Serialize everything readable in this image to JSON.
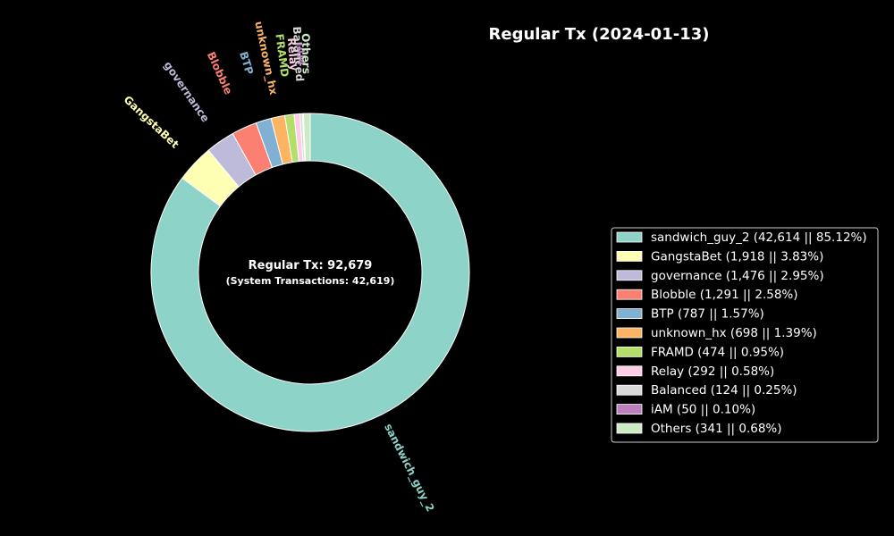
{
  "chart_data": {
    "type": "pie",
    "variant": "donut",
    "title": "Regular Tx (2024-01-13)",
    "center_main": "Regular Tx: 92,679",
    "center_sub": "(System Transactions: 42,619)",
    "legend_position": "right",
    "background": "#000000",
    "slices": [
      {
        "label": "sandwich_guy_2",
        "value": 42614,
        "percent": 85.12,
        "color": "#8dd3c7",
        "legend": "sandwich_guy_2 (42,614 || 85.12%)"
      },
      {
        "label": "GangstaBet",
        "value": 1918,
        "percent": 3.83,
        "color": "#ffffb3",
        "legend": "GangstaBet (1,918 || 3.83%)"
      },
      {
        "label": "governance",
        "value": 1476,
        "percent": 2.95,
        "color": "#bebada",
        "legend": "governance (1,476 || 2.95%)"
      },
      {
        "label": "Blobble",
        "value": 1291,
        "percent": 2.58,
        "color": "#fb8072",
        "legend": "Blobble (1,291 || 2.58%)"
      },
      {
        "label": "BTP",
        "value": 787,
        "percent": 1.57,
        "color": "#80b1d3",
        "legend": "BTP (787 || 1.57%)"
      },
      {
        "label": "unknown_hx",
        "value": 698,
        "percent": 1.39,
        "color": "#fdb462",
        "legend": "unknown_hx (698 || 1.39%)"
      },
      {
        "label": "FRAMD",
        "value": 474,
        "percent": 0.95,
        "color": "#b3de69",
        "legend": "FRAMD (474 || 0.95%)"
      },
      {
        "label": "Relay",
        "value": 292,
        "percent": 0.58,
        "color": "#fccde5",
        "legend": "Relay (292 || 0.58%)"
      },
      {
        "label": "Balanced",
        "value": 124,
        "percent": 0.25,
        "color": "#d9d9d9",
        "legend": "Balanced (124 || 0.25%)"
      },
      {
        "label": "iAM",
        "value": 50,
        "percent": 0.1,
        "color": "#bc80bd",
        "legend": "iAM  (50 || 0.10%)"
      },
      {
        "label": "Others",
        "value": 341,
        "percent": 0.68,
        "color": "#ccebc5",
        "legend": "Others (341 || 0.68%)"
      }
    ]
  }
}
